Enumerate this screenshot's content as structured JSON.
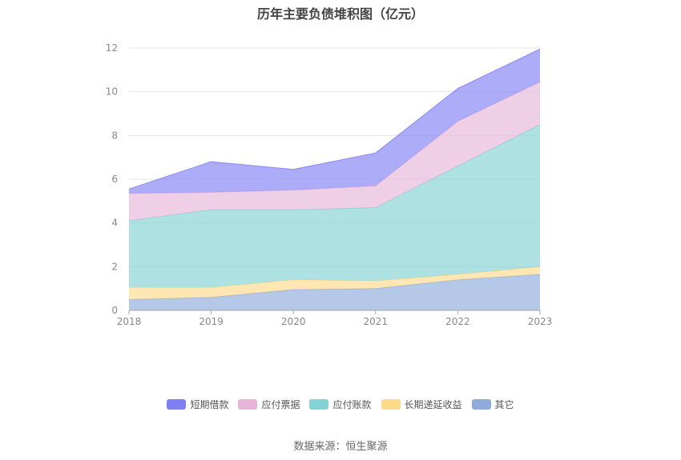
{
  "title": "历年主要负债堆积图（亿元）",
  "source": "数据来源：恒生聚源",
  "chart_data": {
    "type": "area",
    "stacked": true,
    "title": "历年主要负债堆积图（亿元）",
    "categories": [
      "2018",
      "2019",
      "2020",
      "2021",
      "2022",
      "2023"
    ],
    "ylim": [
      0,
      12
    ],
    "yticks": [
      0,
      2,
      4,
      6,
      8,
      10,
      12
    ],
    "grid": true,
    "legend_position": "bottom",
    "series": [
      {
        "name": "其它",
        "color": "#8faadc",
        "values": [
          0.5,
          0.6,
          0.95,
          1.0,
          1.4,
          1.65
        ]
      },
      {
        "name": "长期递延收益",
        "color": "#ffd98a",
        "values": [
          0.55,
          0.45,
          0.45,
          0.35,
          0.25,
          0.35
        ]
      },
      {
        "name": "应付账款",
        "color": "#82d3d3",
        "values": [
          3.05,
          3.55,
          3.2,
          3.35,
          4.95,
          6.5
        ]
      },
      {
        "name": "应付票据",
        "color": "#e7b5d8",
        "values": [
          1.25,
          0.8,
          0.9,
          1.0,
          2.05,
          1.95
        ]
      },
      {
        "name": "短期借款",
        "color": "#7f7ff5",
        "values": [
          0.2,
          1.4,
          0.95,
          1.5,
          1.5,
          1.5
        ]
      }
    ]
  },
  "legend": [
    {
      "name": "短期借款",
      "color": "#7f7ff5"
    },
    {
      "name": "应付票据",
      "color": "#e7b5d8"
    },
    {
      "name": "应付账款",
      "color": "#82d3d3"
    },
    {
      "name": "长期递延收益",
      "color": "#ffd98a"
    },
    {
      "name": "其它",
      "color": "#8faadc"
    }
  ]
}
